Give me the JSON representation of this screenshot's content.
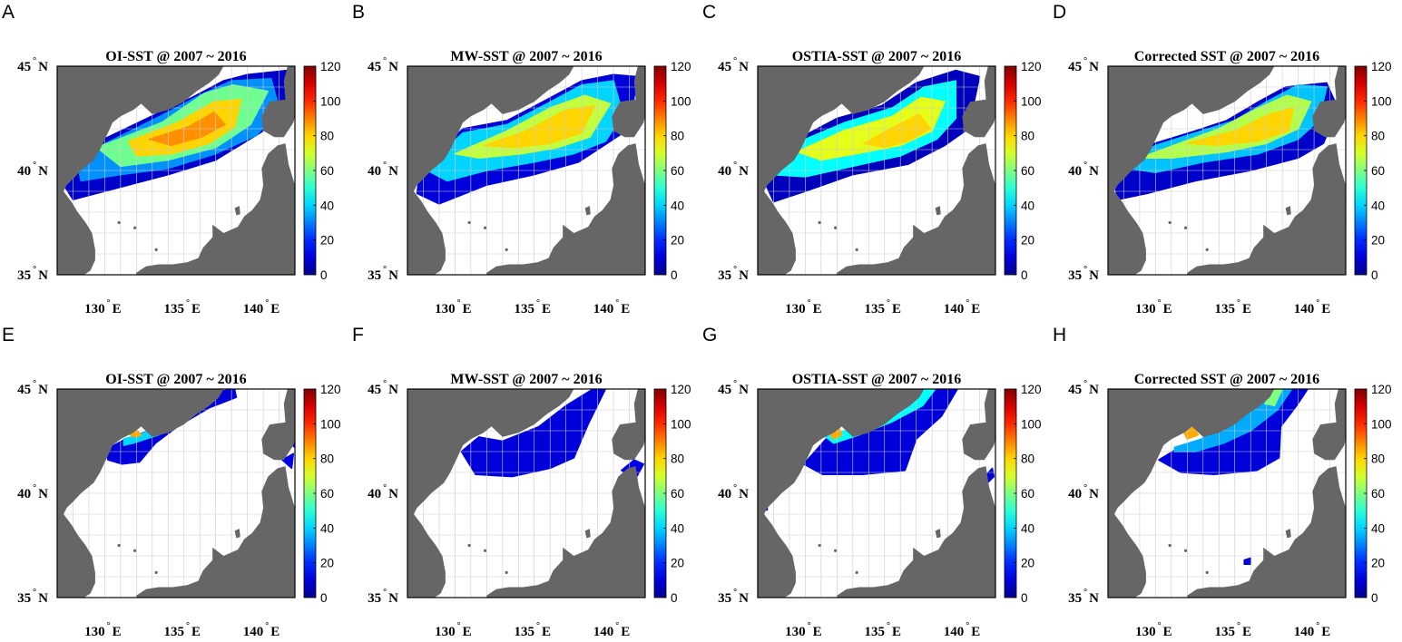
{
  "colorbar": {
    "ticks": [
      "0",
      "20",
      "40",
      "60",
      "80",
      "100",
      "120"
    ]
  },
  "axes": {
    "lat_labels": [
      {
        "deg": "45",
        "hemi": "N"
      },
      {
        "deg": "40",
        "hemi": "N"
      },
      {
        "deg": "35",
        "hemi": "N"
      }
    ],
    "lon_labels": [
      {
        "deg": "130",
        "hemi": "E"
      },
      {
        "deg": "135",
        "hemi": "E"
      },
      {
        "deg": "140",
        "hemi": "E"
      }
    ]
  },
  "colors": {
    "land": "#666666",
    "ocean_empty": "#ffffff",
    "grid": "#cccccc",
    "frame": "#000000"
  },
  "panels": [
    {
      "letter": "A",
      "title": "OI-SST @ 2007 ~ 2016",
      "field": "oi",
      "season": "high"
    },
    {
      "letter": "B",
      "title": "MW-SST @ 2007 ~ 2016",
      "field": "mw",
      "season": "high"
    },
    {
      "letter": "C",
      "title": "OSTIA-SST @ 2007 ~ 2016",
      "field": "ostia",
      "season": "high"
    },
    {
      "letter": "D",
      "title": "Corrected SST @ 2007 ~ 2016",
      "field": "corr",
      "season": "high"
    },
    {
      "letter": "E",
      "title": "OI-SST @ 2007 ~ 2016",
      "field": "oi",
      "season": "low"
    },
    {
      "letter": "F",
      "title": "MW-SST @ 2007 ~ 2016",
      "field": "mw",
      "season": "low"
    },
    {
      "letter": "G",
      "title": "OSTIA-SST @ 2007 ~ 2016",
      "field": "ostia",
      "season": "low"
    },
    {
      "letter": "H",
      "title": "Corrected SST @ 2007 ~ 2016",
      "field": "corr",
      "season": "low"
    }
  ]
}
